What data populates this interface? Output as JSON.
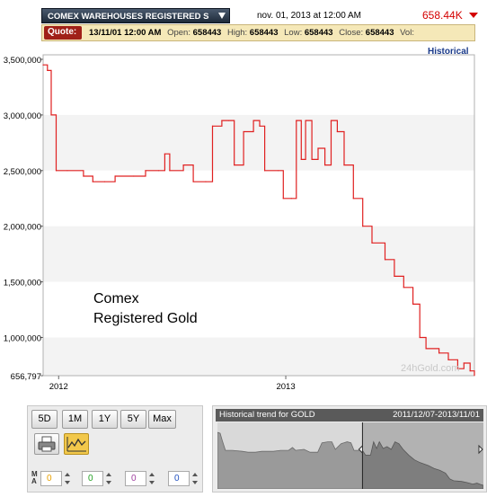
{
  "header": {
    "symbol": "COMEX WAREHOUSES REGISTERED S",
    "datetime": "nov. 01, 2013 at 12:00 AM",
    "last_price": "658.44K"
  },
  "quote": {
    "label": "Quote:",
    "date": "13/11/01 12:00 AM",
    "open_label": "Open:",
    "open": "658443",
    "high_label": "High:",
    "high": "658443",
    "low_label": "Low:",
    "low": "658443",
    "close_label": "Close:",
    "close": "658443",
    "vol_label": "Vol:",
    "vol": ""
  },
  "historical_link": "Historical",
  "annotation": {
    "line1": "Comex",
    "line2": "Registered Gold"
  },
  "watermark": "24hGold.com",
  "colors": {
    "line": "#e02020",
    "quote_bar": "#f5e8b8",
    "quote_label": "#a02018",
    "price_down": "#d40000",
    "chart_type_active": "#f2c84b"
  },
  "ranges": [
    "5D",
    "1M",
    "1Y",
    "5Y",
    "Max"
  ],
  "icons": {
    "print": "printer-icon",
    "chart_type": "line-chart-icon",
    "ma": "moving-average-icon"
  },
  "ma_label": "M\nA",
  "ma_values": [
    "0",
    "0",
    "0",
    "0"
  ],
  "ma_colors": [
    "#e8a000",
    "#22a022",
    "#a040a0",
    "#2050c0"
  ],
  "navigator": {
    "title": "Historical trend for GOLD",
    "range": "2011/12/07-2013/11/01"
  },
  "chart_data": {
    "type": "line",
    "title": "",
    "xlabel": "",
    "ylabel": "",
    "x_ticks": [
      "2012",
      "2013"
    ],
    "y_ticks": [
      "3,500,000",
      "3,000,000",
      "2,500,000",
      "2,000,000",
      "1,500,000",
      "1,000,000",
      "656,797"
    ],
    "ylim": [
      656797,
      3500000
    ],
    "xlim": [
      "2011-12-07",
      "2013-11-01"
    ],
    "grid": true,
    "series": [
      {
        "points": [
          [
            "2011-12-07",
            3450000
          ],
          [
            "2011-12-14",
            3400000
          ],
          [
            "2011-12-20",
            3000000
          ],
          [
            "2011-12-28",
            2500000
          ],
          [
            "2012-01-15",
            2500000
          ],
          [
            "2012-02-10",
            2450000
          ],
          [
            "2012-02-25",
            2400000
          ],
          [
            "2012-03-15",
            2400000
          ],
          [
            "2012-04-01",
            2450000
          ],
          [
            "2012-05-01",
            2450000
          ],
          [
            "2012-05-20",
            2500000
          ],
          [
            "2012-06-10",
            2500000
          ],
          [
            "2012-06-20",
            2650000
          ],
          [
            "2012-06-28",
            2500000
          ],
          [
            "2012-07-20",
            2550000
          ],
          [
            "2012-08-05",
            2400000
          ],
          [
            "2012-08-25",
            2400000
          ],
          [
            "2012-09-05",
            2900000
          ],
          [
            "2012-09-20",
            2950000
          ],
          [
            "2012-10-01",
            2950000
          ],
          [
            "2012-10-10",
            2550000
          ],
          [
            "2012-10-25",
            2850000
          ],
          [
            "2012-11-10",
            2950000
          ],
          [
            "2012-11-20",
            2900000
          ],
          [
            "2012-11-28",
            2500000
          ],
          [
            "2012-12-20",
            2500000
          ],
          [
            "2012-12-28",
            2250000
          ],
          [
            "2013-01-10",
            2250000
          ],
          [
            "2013-01-18",
            2950000
          ],
          [
            "2013-01-26",
            2600000
          ],
          [
            "2013-02-02",
            2950000
          ],
          [
            "2013-02-12",
            2600000
          ],
          [
            "2013-02-22",
            2700000
          ],
          [
            "2013-03-05",
            2550000
          ],
          [
            "2013-03-15",
            2950000
          ],
          [
            "2013-03-25",
            2850000
          ],
          [
            "2013-04-05",
            2550000
          ],
          [
            "2013-04-20",
            2250000
          ],
          [
            "2013-05-05",
            2000000
          ],
          [
            "2013-05-20",
            1850000
          ],
          [
            "2013-06-10",
            1700000
          ],
          [
            "2013-06-25",
            1550000
          ],
          [
            "2013-07-10",
            1450000
          ],
          [
            "2013-07-25",
            1300000
          ],
          [
            "2013-08-05",
            1000000
          ],
          [
            "2013-08-15",
            900000
          ],
          [
            "2013-09-05",
            860000
          ],
          [
            "2013-09-20",
            800000
          ],
          [
            "2013-10-05",
            720000
          ],
          [
            "2013-10-15",
            770000
          ],
          [
            "2013-10-25",
            700000
          ],
          [
            "2013-11-01",
            658443
          ]
        ]
      }
    ]
  }
}
